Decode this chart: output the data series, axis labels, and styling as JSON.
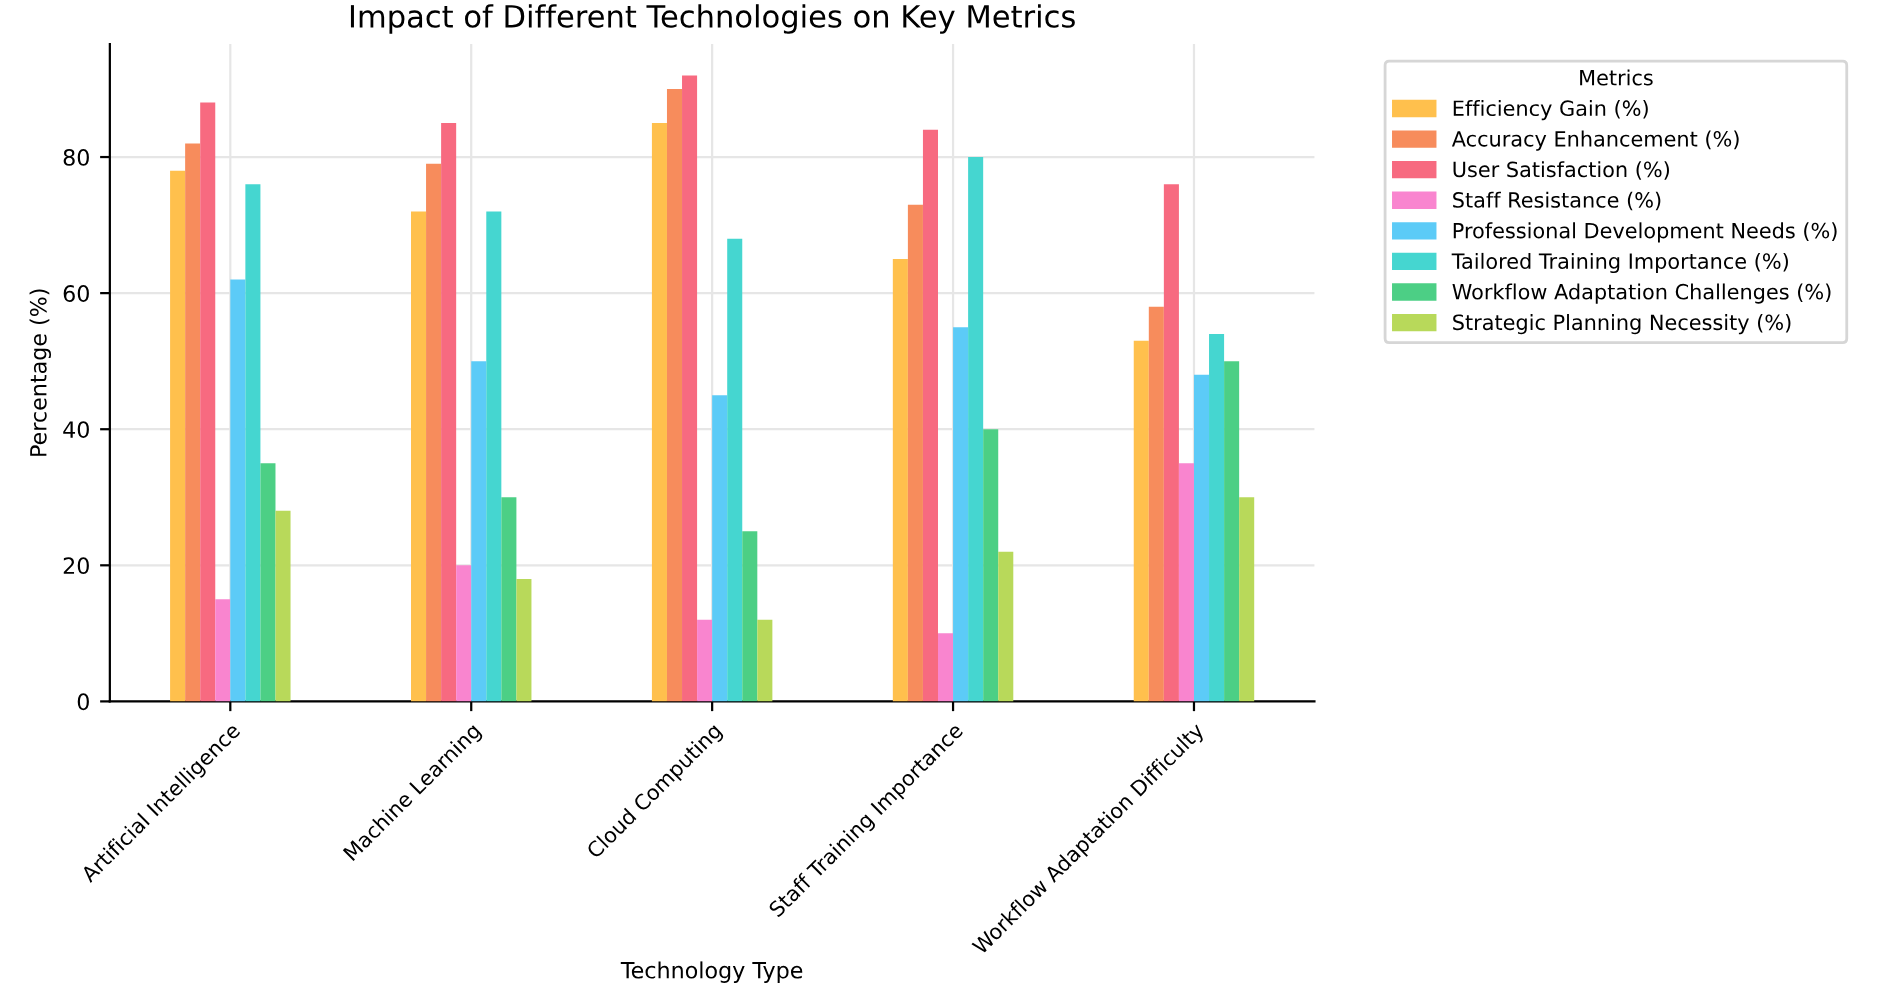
{
  "chart_data": {
    "type": "bar",
    "title": "Impact of Different Technologies on Key Metrics",
    "xlabel": "Technology Type",
    "ylabel": "Percentage (%)",
    "legend_title": "Metrics",
    "categories": [
      "Artificial Intelligence",
      "Machine Learning",
      "Cloud Computing",
      "Staff Training Importance",
      "Workflow Adaptation Difficulty"
    ],
    "series": [
      {
        "name": "Efficiency Gain (%)",
        "color": "#ffc04d",
        "values": [
          78,
          72,
          85,
          65,
          53
        ]
      },
      {
        "name": "Accuracy Enhancement (%)",
        "color": "#f78c5c",
        "values": [
          82,
          79,
          90,
          73,
          58
        ]
      },
      {
        "name": "User Satisfaction (%)",
        "color": "#f76a80",
        "values": [
          88,
          85,
          92,
          84,
          76
        ]
      },
      {
        "name": "Staff Resistance (%)",
        "color": "#f985cf",
        "values": [
          15,
          20,
          12,
          10,
          35
        ]
      },
      {
        "name": "Professional Development Needs (%)",
        "color": "#5ccbf7",
        "values": [
          62,
          50,
          45,
          55,
          48
        ]
      },
      {
        "name": "Tailored Training Importance (%)",
        "color": "#45d6d0",
        "values": [
          76,
          72,
          68,
          80,
          54
        ]
      },
      {
        "name": "Workflow Adaptation Challenges (%)",
        "color": "#4ccf85",
        "values": [
          35,
          30,
          25,
          40,
          50
        ]
      },
      {
        "name": "Strategic Planning Necessity (%)",
        "color": "#b8d95a",
        "values": [
          28,
          18,
          12,
          22,
          30
        ]
      }
    ],
    "ylim": [
      0,
      96.6
    ],
    "yticks": [
      0,
      20,
      40,
      60,
      80
    ],
    "grid": true,
    "legend": "top right"
  }
}
